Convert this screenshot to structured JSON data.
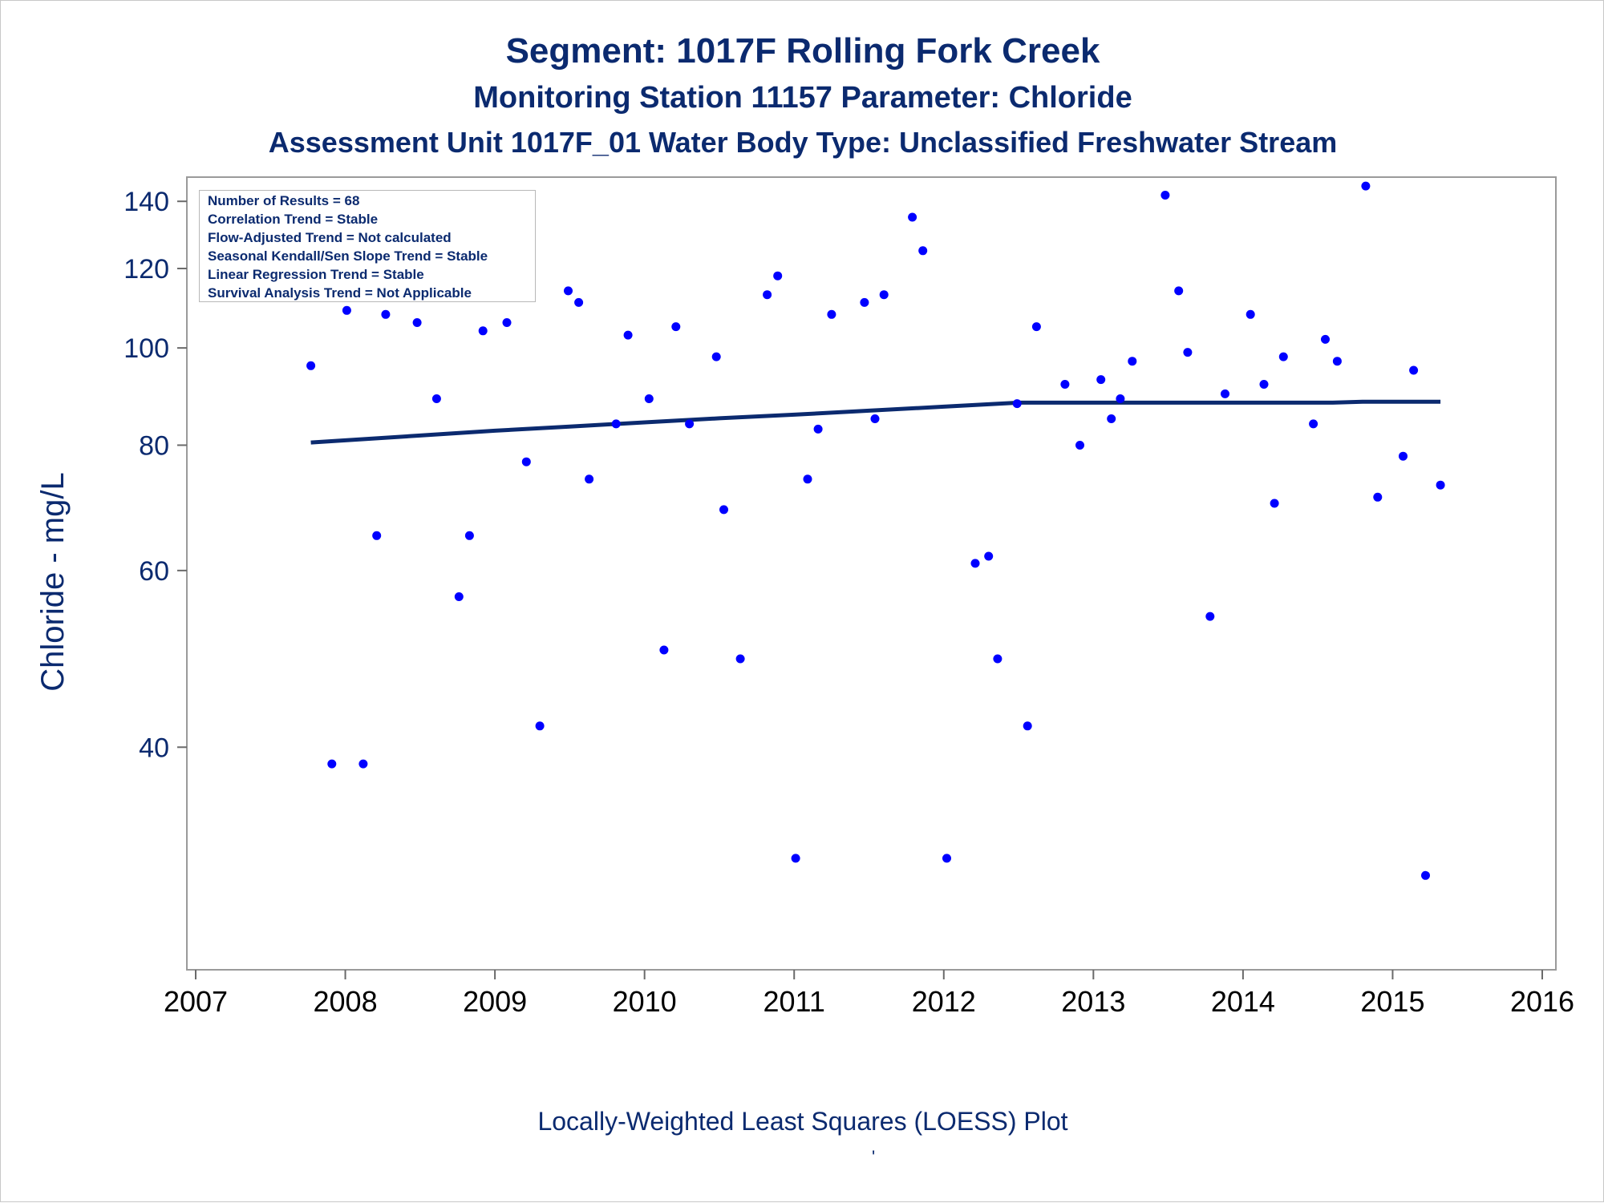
{
  "chart_data": {
    "type": "scatter",
    "title": "Segment: 1017F  Rolling Fork Creek",
    "subtitle": "Monitoring Station 11157 Parameter: Chloride",
    "subtitle2": "Assessment Unit 1017F_01   Water Body Type: Unclassified Freshwater Stream",
    "ylabel": "Chloride - mg/L",
    "xlabel": "",
    "note": "Locally-Weighted Least Squares (LOESS) Plot",
    "footer_mark": "'",
    "x_ticks": [
      "2007",
      "2008",
      "2009",
      "2010",
      "2011",
      "2012",
      "2013",
      "2014",
      "2015",
      "2016"
    ],
    "y_ticks": [
      "40",
      "60",
      "80",
      "100",
      "120",
      "140"
    ],
    "xlim": [
      2007,
      2016
    ],
    "ylim": [
      24,
      148
    ],
    "y_scale": "log",
    "grid": false,
    "legend": "none",
    "stats": [
      "Number of Results = 68",
      "Correlation Trend = Stable",
      "Flow-Adjusted Trend = Not calculated",
      "Seasonal Kendall/Sen Slope Trend = Stable",
      "Linear Regression Trend = Stable",
      "Survival Analysis Trend = Not Applicable"
    ],
    "series": [
      {
        "kind": "points",
        "color": "#0000ff",
        "points": [
          [
            2007.77,
            96
          ],
          [
            2007.91,
            38.5
          ],
          [
            2008.01,
            109
          ],
          [
            2008.12,
            38.5
          ],
          [
            2008.21,
            65
          ],
          [
            2008.27,
            108
          ],
          [
            2008.48,
            106
          ],
          [
            2008.61,
            89
          ],
          [
            2008.76,
            56.5
          ],
          [
            2008.83,
            65
          ],
          [
            2008.92,
            104
          ],
          [
            2009.08,
            106
          ],
          [
            2009.21,
            77
          ],
          [
            2009.3,
            42
          ],
          [
            2009.49,
            114
          ],
          [
            2009.56,
            111
          ],
          [
            2009.63,
            74
          ],
          [
            2009.81,
            84
          ],
          [
            2009.89,
            103
          ],
          [
            2010.03,
            89
          ],
          [
            2010.13,
            50
          ],
          [
            2010.21,
            105
          ],
          [
            2010.3,
            84
          ],
          [
            2010.48,
            98
          ],
          [
            2010.53,
            69
          ],
          [
            2010.64,
            49
          ],
          [
            2010.82,
            113
          ],
          [
            2010.89,
            118
          ],
          [
            2011.01,
            31
          ],
          [
            2011.09,
            74
          ],
          [
            2011.16,
            83
          ],
          [
            2011.25,
            108
          ],
          [
            2011.47,
            111
          ],
          [
            2011.54,
            85
          ],
          [
            2011.6,
            113
          ],
          [
            2011.79,
            135
          ],
          [
            2011.86,
            125
          ],
          [
            2012.02,
            31
          ],
          [
            2012.21,
            61
          ],
          [
            2012.3,
            62
          ],
          [
            2012.36,
            49
          ],
          [
            2012.49,
            88
          ],
          [
            2012.56,
            42
          ],
          [
            2012.62,
            105
          ],
          [
            2012.81,
            92
          ],
          [
            2012.91,
            80
          ],
          [
            2013.05,
            93
          ],
          [
            2013.12,
            85
          ],
          [
            2013.18,
            89
          ],
          [
            2013.26,
            97
          ],
          [
            2013.48,
            142
          ],
          [
            2013.57,
            114
          ],
          [
            2013.63,
            99
          ],
          [
            2013.78,
            54
          ],
          [
            2013.88,
            90
          ],
          [
            2014.05,
            108
          ],
          [
            2014.14,
            92
          ],
          [
            2014.21,
            70
          ],
          [
            2014.27,
            98
          ],
          [
            2014.47,
            84
          ],
          [
            2014.55,
            102
          ],
          [
            2014.63,
            97
          ],
          [
            2014.82,
            145
          ],
          [
            2014.9,
            71
          ],
          [
            2015.07,
            78
          ],
          [
            2015.14,
            95
          ],
          [
            2015.22,
            29.8
          ],
          [
            2015.32,
            73
          ]
        ]
      },
      {
        "kind": "line",
        "color": "#0b2a6f",
        "points": [
          [
            2007.77,
            80.5
          ],
          [
            2008.5,
            81.8
          ],
          [
            2009.0,
            82.7
          ],
          [
            2009.5,
            83.5
          ],
          [
            2010.0,
            84.3
          ],
          [
            2010.5,
            85.1
          ],
          [
            2011.0,
            85.8
          ],
          [
            2011.5,
            86.6
          ],
          [
            2012.0,
            87.4
          ],
          [
            2012.5,
            88.2
          ],
          [
            2013.0,
            88.2
          ],
          [
            2013.5,
            88.2
          ],
          [
            2014.0,
            88.2
          ],
          [
            2014.6,
            88.2
          ],
          [
            2014.8,
            88.4
          ],
          [
            2015.32,
            88.4
          ]
        ]
      }
    ]
  }
}
